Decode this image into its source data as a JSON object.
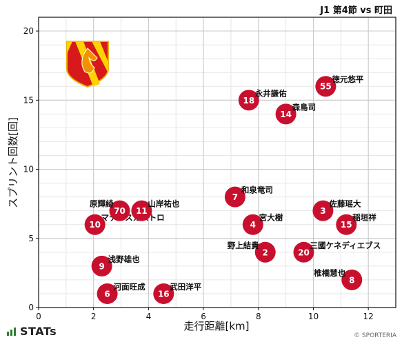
{
  "title": "J1 第4節 vs 町田",
  "footer": {
    "logo_text": "STATs",
    "credit": "© SPORTERIA"
  },
  "colors": {
    "marker": "#c8102e",
    "marker_text": "#ffffff",
    "grid": "#c8c8c8",
    "crest_orange": "#f29200",
    "crest_red": "#d7191c",
    "crest_yellow": "#ffd200"
  },
  "chart_data": {
    "type": "scatter",
    "xlabel": "走行距離[km]",
    "ylabel": "スプリント回数[回]",
    "xlim": [
      0,
      13
    ],
    "ylim": [
      0,
      21
    ],
    "xticks": [
      0,
      2,
      4,
      6,
      8,
      10,
      12
    ],
    "yticks": [
      0,
      5,
      10,
      15,
      20
    ],
    "grid": true,
    "points": [
      {
        "number": "6",
        "name": "河面旺成",
        "x": 2.5,
        "y": 1,
        "label_pos": "upper-right"
      },
      {
        "number": "16",
        "name": "武田洋平",
        "x": 4.55,
        "y": 1,
        "label_pos": "upper-right"
      },
      {
        "number": "9",
        "name": "浅野雄也",
        "x": 2.3,
        "y": 3,
        "label_pos": "upper-right"
      },
      {
        "number": "10",
        "name": "マテウスカストロ",
        "x": 2.05,
        "y": 6,
        "label_pos": "upper-right"
      },
      {
        "number": "70",
        "name": "原輝綺",
        "x": 2.95,
        "y": 7,
        "label_pos": "upper-left"
      },
      {
        "number": "11",
        "name": "山岸祐也",
        "x": 3.75,
        "y": 7,
        "label_pos": "upper-right"
      },
      {
        "number": "7",
        "name": "和泉竜司",
        "x": 7.15,
        "y": 8,
        "label_pos": "upper-right"
      },
      {
        "number": "4",
        "name": "宮大樹",
        "x": 7.8,
        "y": 6,
        "label_pos": "upper-right"
      },
      {
        "number": "2",
        "name": "野上結貴",
        "x": 8.25,
        "y": 4,
        "label_pos": "upper-left"
      },
      {
        "number": "20",
        "name": "三國ケネディエブス",
        "x": 9.65,
        "y": 4,
        "label_pos": "upper-right"
      },
      {
        "number": "3",
        "name": "佐藤瑶大",
        "x": 10.35,
        "y": 7,
        "label_pos": "upper-right"
      },
      {
        "number": "15",
        "name": "稲垣祥",
        "x": 11.2,
        "y": 6,
        "label_pos": "upper-right"
      },
      {
        "number": "8",
        "name": "椎橋慧也",
        "x": 11.4,
        "y": 2,
        "label_pos": "upper-left"
      },
      {
        "number": "18",
        "name": "永井謙佑",
        "x": 7.65,
        "y": 15,
        "label_pos": "upper-right"
      },
      {
        "number": "14",
        "name": "森島司",
        "x": 9.0,
        "y": 14,
        "label_pos": "upper-right"
      },
      {
        "number": "55",
        "name": "徳元悠平",
        "x": 10.45,
        "y": 16,
        "label_pos": "upper-right"
      }
    ]
  }
}
